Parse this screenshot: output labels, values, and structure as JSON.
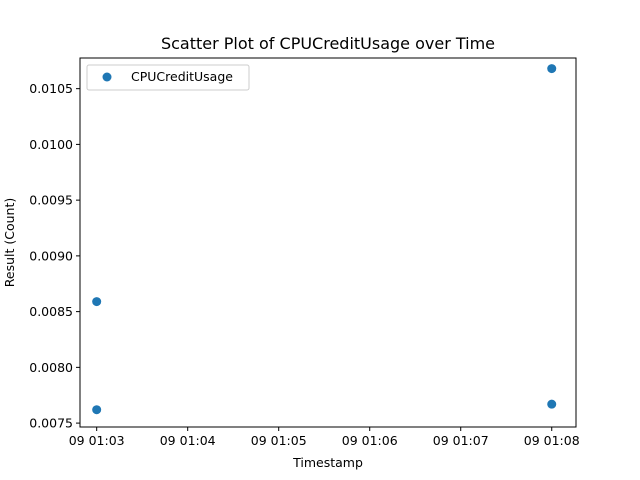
{
  "chart_data": {
    "type": "scatter",
    "title": "Scatter Plot of CPUCreditUsage over Time",
    "xlabel": "Timestamp",
    "ylabel": "Result (Count)",
    "x_ticks": [
      "09 01:03",
      "09 01:04",
      "09 01:05",
      "09 01:06",
      "09 01:07",
      "09 01:08"
    ],
    "xlim": [
      "01:02:49",
      "01:08:16"
    ],
    "y_ticks": [
      "0.0075",
      "0.0080",
      "0.0085",
      "0.0090",
      "0.0095",
      "0.0100",
      "0.0105"
    ],
    "ylim": [
      0.007465,
      0.010775
    ],
    "series": [
      {
        "name": "CPUCreditUsage",
        "color": "#1f77b4",
        "points": [
          {
            "x": "09 01:03",
            "y": 0.00859
          },
          {
            "x": "09 01:03",
            "y": 0.00762
          },
          {
            "x": "09 01:08",
            "y": 0.01068
          },
          {
            "x": "09 01:08",
            "y": 0.00767
          }
        ]
      }
    ],
    "legend": {
      "position": "top-left"
    },
    "grid": false
  }
}
